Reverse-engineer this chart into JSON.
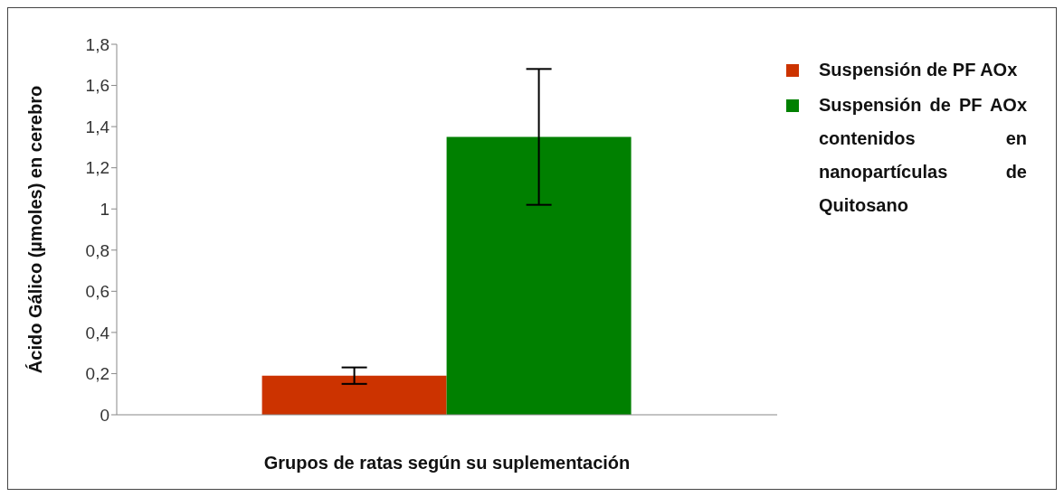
{
  "chart_data": {
    "type": "bar",
    "xlabel": "Grupos de ratas según su suplementación",
    "ylabel": "Ácido Gálico (µmoles) en cerebro",
    "categories": [
      null
    ],
    "series": [
      {
        "name": "Suspensión de PF AOx",
        "color": "#cc3300",
        "values": [
          0.19
        ],
        "errors": [
          0.04
        ]
      },
      {
        "name": "Suspensión de PF AOx contenidos en nanopartículas de Quitosano",
        "color": "#008000",
        "values": [
          1.35
        ],
        "errors": [
          0.33
        ]
      }
    ],
    "ylim": [
      0,
      1.8
    ],
    "yticks": [
      0,
      {
        "value": 0.2,
        "label": "0,2"
      },
      {
        "value": 0.4,
        "label": "0,4"
      },
      {
        "value": 0.6,
        "label": "0,6"
      },
      {
        "value": 0.8,
        "label": "0,8"
      },
      {
        "value": 1,
        "label": "1"
      },
      {
        "value": 1.2,
        "label": "1,2"
      },
      {
        "value": 1.4,
        "label": "1,4"
      },
      {
        "value": 1.6,
        "label": "1,6"
      },
      {
        "value": 1.8,
        "label": "1,8"
      }
    ],
    "tick_labels": "y",
    "grid": false,
    "legend": "right"
  }
}
